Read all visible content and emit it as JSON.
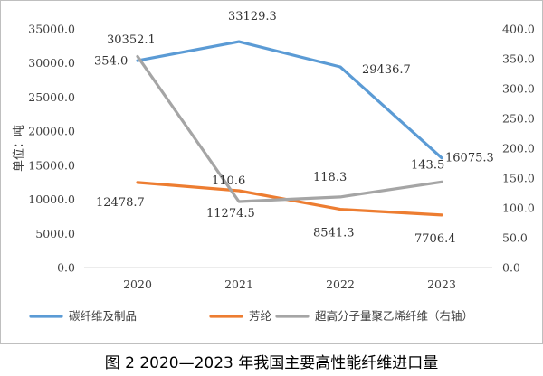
{
  "caption": "图 2 2020—2023 年我国主要高性能纤维进口量",
  "chart_data": {
    "type": "line",
    "categories": [
      "2020",
      "2021",
      "2022",
      "2023"
    ],
    "ylabel": "单位：吨",
    "ylim": [
      0,
      35000
    ],
    "y2lim": [
      0,
      400
    ],
    "y_ticks": [
      "0.0",
      "5000.0",
      "10000.0",
      "15000.0",
      "20000.0",
      "25000.0",
      "30000.0",
      "35000.0"
    ],
    "y2_ticks": [
      "0.0",
      "50.0",
      "100.0",
      "150.0",
      "200.0",
      "250.0",
      "300.0",
      "350.0",
      "400.0"
    ],
    "grid": false,
    "legend_position": "bottom",
    "series": [
      {
        "name": "碳纤维及制品",
        "axis": "left",
        "color": "#5b9bd5",
        "values": [
          30352.1,
          33129.3,
          29436.7,
          16075.3
        ],
        "labels": [
          "30352.1",
          "33129.3",
          "29436.7",
          "16075.3"
        ]
      },
      {
        "name": "芳纶",
        "axis": "left",
        "color": "#ed7d31",
        "values": [
          12478.7,
          11274.5,
          8541.3,
          7706.4
        ],
        "labels": [
          "12478.7",
          "11274.5",
          "8541.3",
          "7706.4"
        ]
      },
      {
        "name": "超高分子量聚乙烯纤维（右轴）",
        "axis": "right",
        "color": "#a5a5a5",
        "values": [
          354.0,
          110.6,
          118.3,
          143.5
        ],
        "labels": [
          "354.0",
          "110.6",
          "118.3",
          "143.5"
        ]
      }
    ]
  }
}
